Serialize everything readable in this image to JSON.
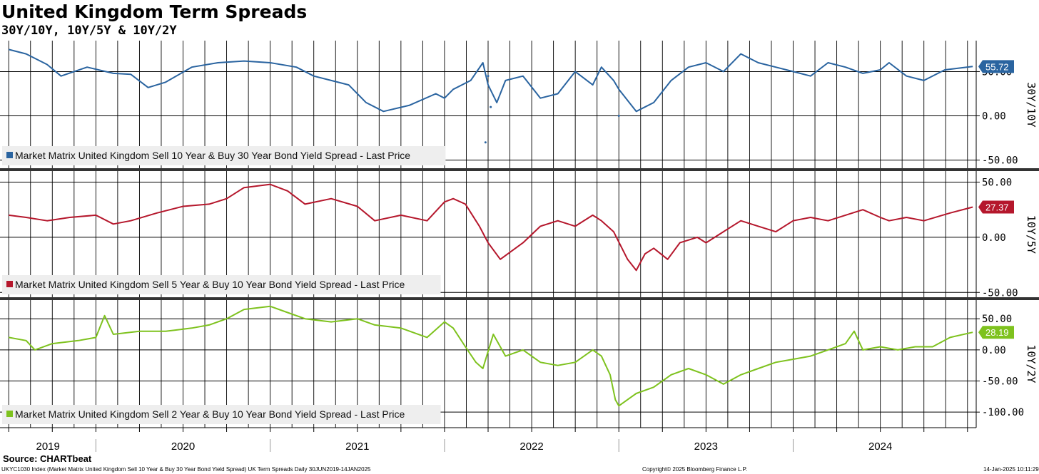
{
  "header": {
    "title": "United Kingdom Term Spreads",
    "subtitle": "30Y/10Y, 10Y/5Y & 10Y/2Y"
  },
  "footer": {
    "source": "Source: CHARTbeat",
    "index_text": "UKYC1030 Index (Market Matrix United Kingdom Sell 10 Year & Buy 30 Year Bond Yield Spread) UK Term Spreads  Daily 30JUN2019-14JAN2025",
    "copyright": "Copyright© 2025 Bloomberg Finance L.P.",
    "timestamp": "14-Jan-2025 10:11:29"
  },
  "chart_data": [
    {
      "type": "line",
      "panel": "30Y/10Y",
      "color": "#2a64a0",
      "legend": "Market Matrix United Kingdom Sell 10 Year & Buy 30 Year Bond Yield Spread - Last Price",
      "last_value": "55.72",
      "ylim": [
        -60,
        85
      ],
      "yticks": [
        {
          "v": 50,
          "label": "50.00"
        },
        {
          "v": 0,
          "label": "0.00"
        },
        {
          "v": -50,
          "label": "-50.00"
        }
      ],
      "x": [
        2019.5,
        2019.6,
        2019.72,
        2019.8,
        2019.95,
        2020.1,
        2020.2,
        2020.3,
        2020.4,
        2020.55,
        2020.7,
        2020.85,
        2021.0,
        2021.15,
        2021.25,
        2021.35,
        2021.45,
        2021.55,
        2021.65,
        2021.8,
        2021.95,
        2022.0,
        2022.05,
        2022.15,
        2022.22,
        2022.25,
        2022.3,
        2022.35,
        2022.45,
        2022.55,
        2022.65,
        2022.75,
        2022.85,
        2022.9,
        2022.97,
        2023.0,
        2023.1,
        2023.2,
        2023.3,
        2023.4,
        2023.5,
        2023.6,
        2023.7,
        2023.8,
        2023.9,
        2024.0,
        2024.1,
        2024.2,
        2024.3,
        2024.4,
        2024.5,
        2024.55,
        2024.65,
        2024.75,
        2024.87,
        2025.03
      ],
      "values": [
        75,
        70,
        58,
        45,
        55,
        48,
        47,
        32,
        38,
        55,
        60,
        62,
        60,
        55,
        45,
        40,
        35,
        15,
        5,
        12,
        25,
        20,
        30,
        40,
        60,
        35,
        15,
        40,
        45,
        20,
        25,
        50,
        35,
        55,
        40,
        30,
        5,
        15,
        40,
        55,
        60,
        50,
        70,
        60,
        55,
        50,
        45,
        60,
        55,
        48,
        52,
        60,
        45,
        40,
        52,
        55.72
      ],
      "spikes": [
        {
          "x": 2022.235,
          "y": -30
        },
        {
          "x": 2022.25,
          "y": 45
        },
        {
          "x": 2022.265,
          "y": 10
        },
        {
          "x": 2023.0,
          "y": 0
        }
      ]
    },
    {
      "type": "line",
      "panel": "10Y/5Y",
      "color": "#b5172c",
      "legend": "Market Matrix United Kingdom Sell 5 Year & Buy 10 Year Bond Yield Spread - Last Price",
      "last_value": "27.37",
      "ylim": [
        -55,
        60
      ],
      "yticks": [
        {
          "v": 50,
          "label": "50.00"
        },
        {
          "v": 0,
          "label": "0.00"
        },
        {
          "v": -50,
          "label": "-50.00"
        }
      ],
      "x": [
        2019.5,
        2019.6,
        2019.72,
        2019.85,
        2020.0,
        2020.1,
        2020.2,
        2020.35,
        2020.5,
        2020.65,
        2020.75,
        2020.85,
        2021.0,
        2021.1,
        2021.2,
        2021.35,
        2021.5,
        2021.6,
        2021.75,
        2021.9,
        2022.0,
        2022.05,
        2022.12,
        2022.18,
        2022.2,
        2022.25,
        2022.32,
        2022.45,
        2022.55,
        2022.65,
        2022.75,
        2022.85,
        2022.9,
        2022.97,
        2023.05,
        2023.1,
        2023.15,
        2023.2,
        2023.28,
        2023.35,
        2023.45,
        2023.5,
        2023.6,
        2023.7,
        2023.8,
        2023.9,
        2024.0,
        2024.1,
        2024.2,
        2024.3,
        2024.4,
        2024.5,
        2024.55,
        2024.65,
        2024.75,
        2024.9,
        2025.03
      ],
      "values": [
        20,
        18,
        15,
        18,
        20,
        12,
        15,
        22,
        28,
        30,
        35,
        45,
        48,
        42,
        30,
        35,
        28,
        15,
        20,
        15,
        32,
        35,
        30,
        15,
        10,
        -5,
        -20,
        -5,
        10,
        15,
        10,
        20,
        15,
        5,
        -20,
        -30,
        -15,
        -10,
        -20,
        -5,
        0,
        -5,
        5,
        15,
        10,
        5,
        15,
        18,
        15,
        20,
        25,
        18,
        15,
        18,
        15,
        22,
        27.37
      ]
    },
    {
      "type": "line",
      "panel": "10Y/2Y",
      "color": "#7ec21e",
      "legend": "Market Matrix United Kingdom Sell 2 Year & Buy 10 Year Bond Yield Spread - Last Price",
      "last_value": "28.19",
      "ylim": [
        -125,
        80
      ],
      "yticks": [
        {
          "v": 50,
          "label": "50.00"
        },
        {
          "v": 0,
          "label": "0.00"
        },
        {
          "v": -50,
          "label": "-50.00"
        },
        {
          "v": -100,
          "label": "-100.00"
        }
      ],
      "x": [
        2019.5,
        2019.6,
        2019.65,
        2019.75,
        2019.9,
        2020.0,
        2020.05,
        2020.1,
        2020.25,
        2020.4,
        2020.55,
        2020.65,
        2020.75,
        2020.85,
        2021.0,
        2021.1,
        2021.2,
        2021.35,
        2021.5,
        2021.6,
        2021.75,
        2021.9,
        2022.0,
        2022.05,
        2022.12,
        2022.18,
        2022.22,
        2022.28,
        2022.35,
        2022.45,
        2022.55,
        2022.65,
        2022.75,
        2022.85,
        2022.9,
        2022.95,
        2022.98,
        2023.0,
        2023.1,
        2023.2,
        2023.3,
        2023.4,
        2023.5,
        2023.6,
        2023.7,
        2023.8,
        2023.9,
        2024.0,
        2024.1,
        2024.2,
        2024.3,
        2024.35,
        2024.4,
        2024.5,
        2024.6,
        2024.7,
        2024.8,
        2024.9,
        2025.03
      ],
      "values": [
        20,
        15,
        0,
        10,
        15,
        20,
        55,
        25,
        30,
        30,
        35,
        40,
        50,
        65,
        70,
        60,
        50,
        45,
        50,
        40,
        35,
        20,
        45,
        35,
        5,
        -20,
        -30,
        25,
        -10,
        0,
        -20,
        -25,
        -20,
        0,
        -10,
        -40,
        -80,
        -90,
        -70,
        -60,
        -40,
        -30,
        -40,
        -55,
        -40,
        -30,
        -20,
        -15,
        -10,
        0,
        10,
        30,
        0,
        5,
        0,
        5,
        5,
        20,
        28.19
      ]
    }
  ],
  "x_axis": {
    "years": [
      "2019",
      "2020",
      "2021",
      "2022",
      "2023",
      "2024"
    ]
  }
}
